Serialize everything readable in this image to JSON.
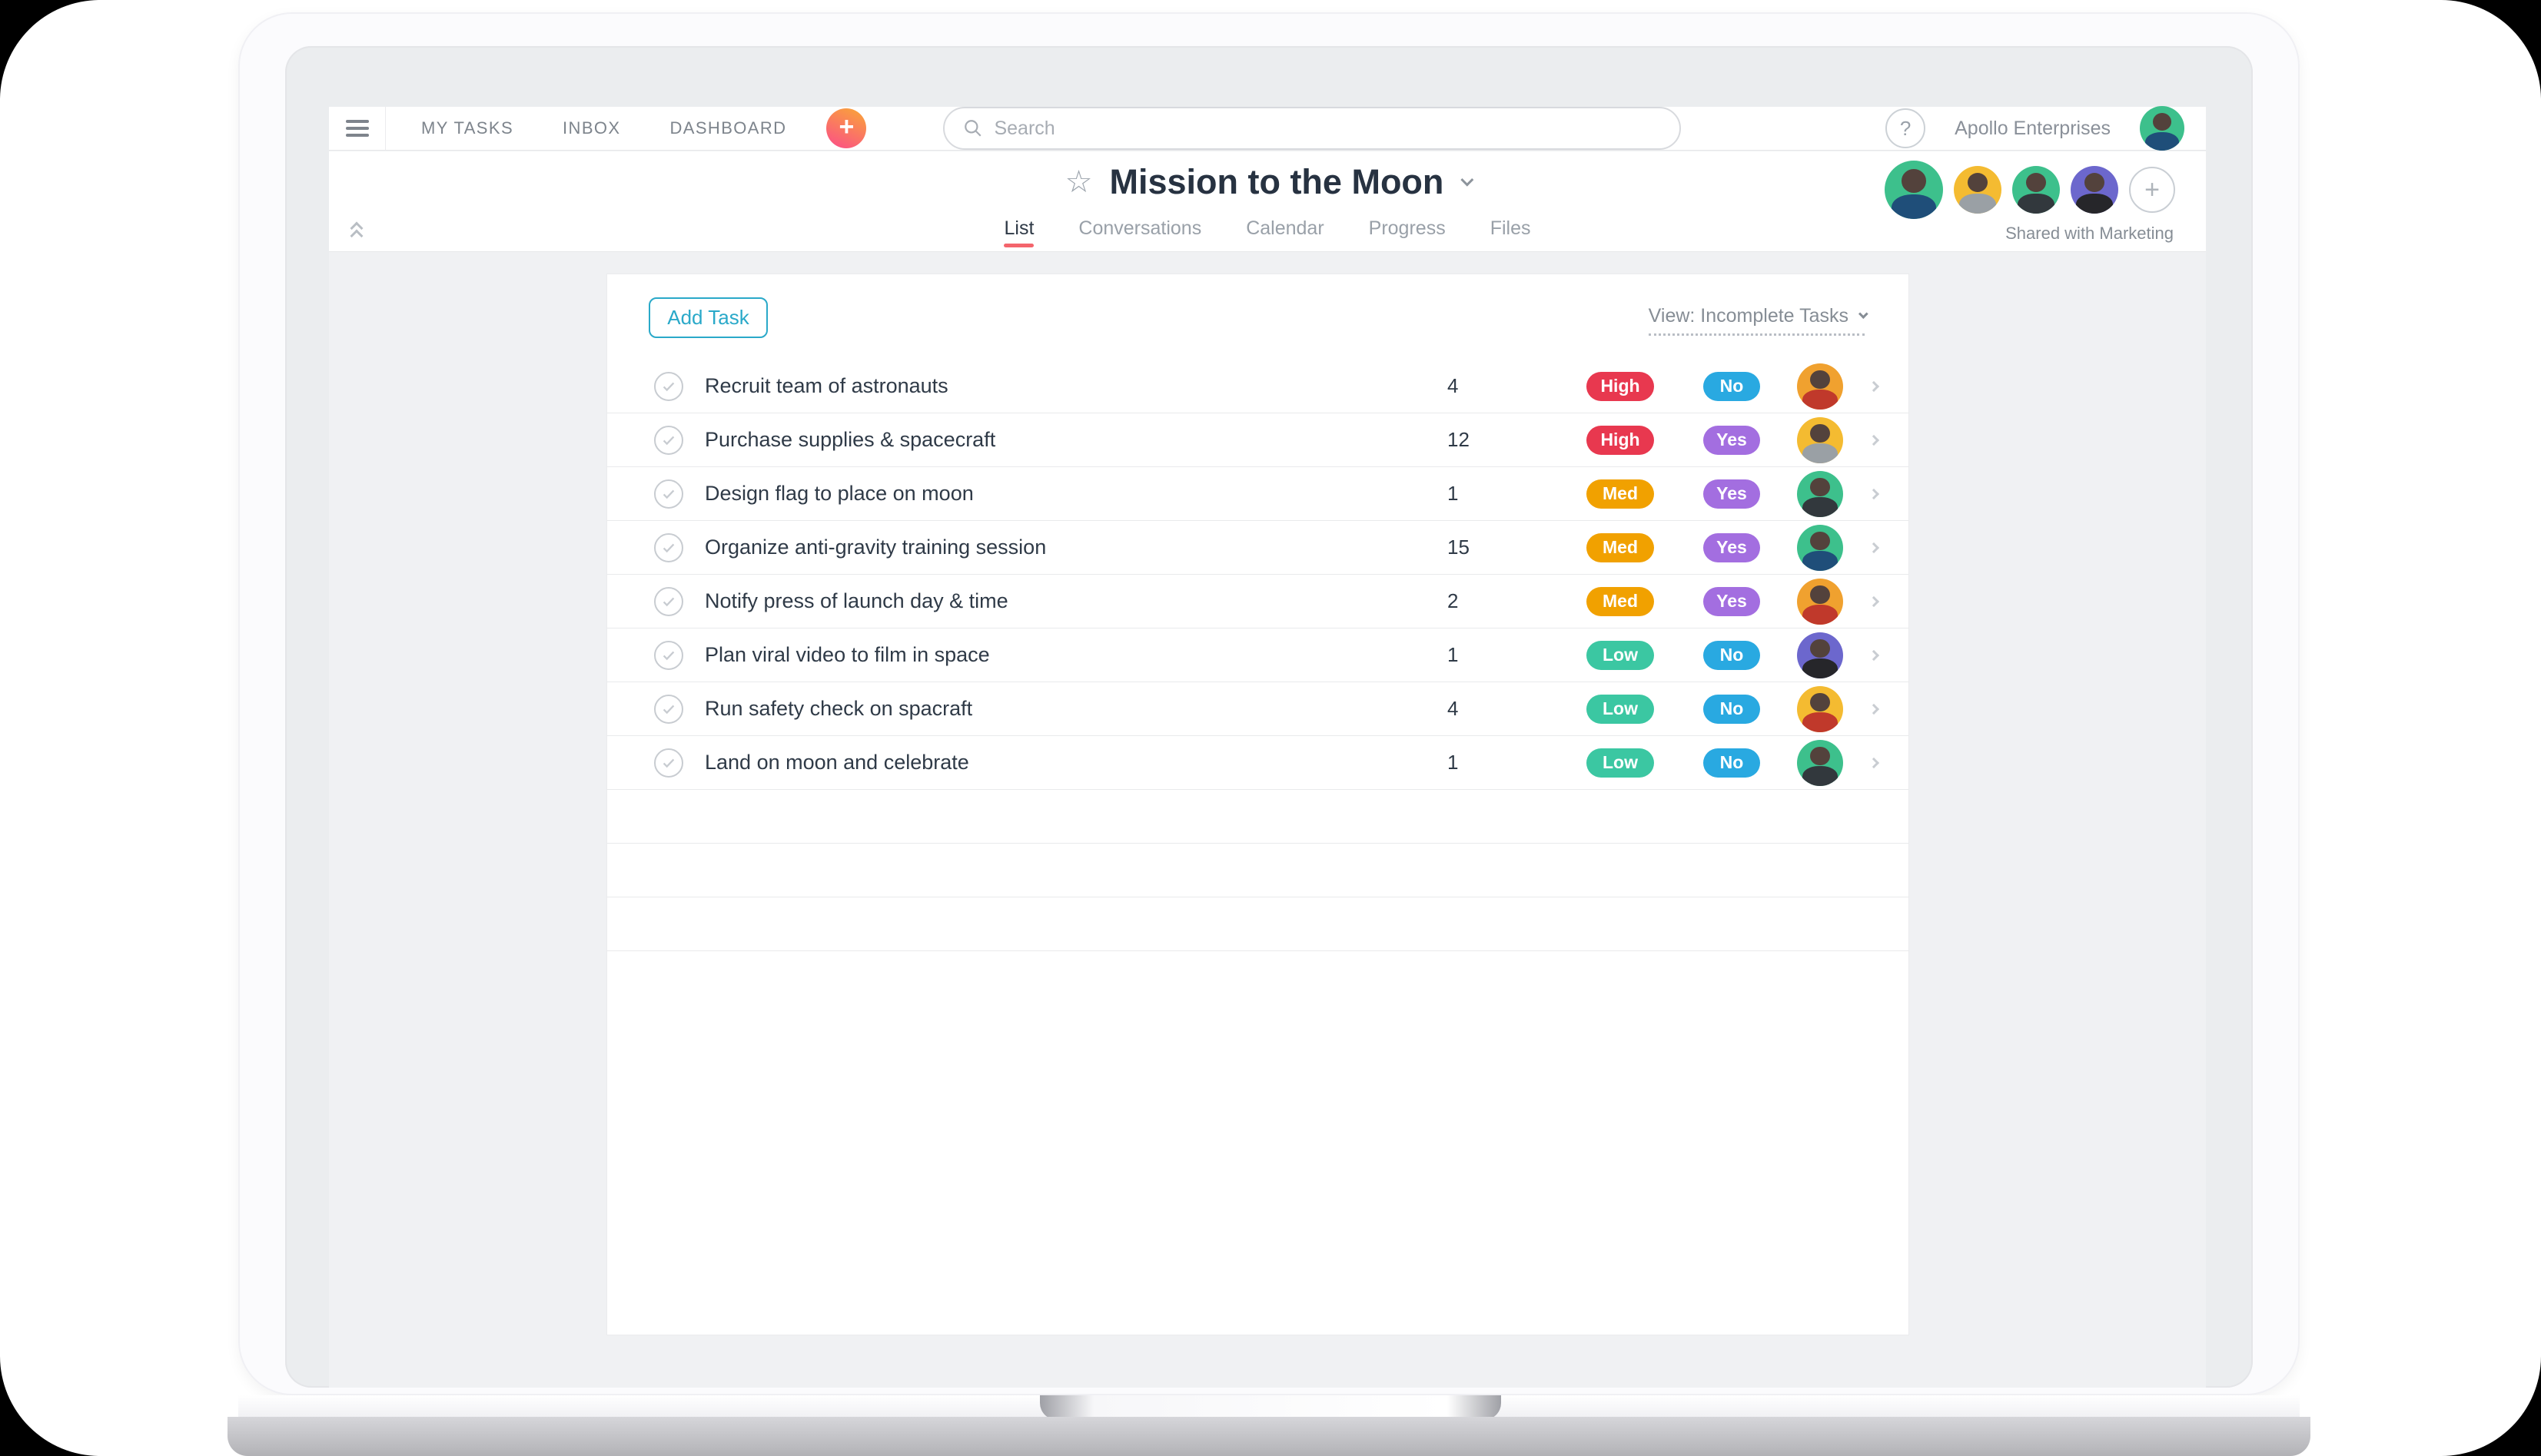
{
  "nav": {
    "items": [
      "MY TASKS",
      "INBOX",
      "DASHBOARD"
    ],
    "search_placeholder": "Search",
    "org_name": "Apollo Enterprises",
    "help_label": "?",
    "plus_label": "+"
  },
  "project": {
    "title": "Mission to the Moon",
    "star_icon": "☆",
    "shared_note": "Shared with Marketing",
    "add_member_label": "+"
  },
  "tabs": [
    {
      "label": "List",
      "active": true
    },
    {
      "label": "Conversations",
      "active": false
    },
    {
      "label": "Calendar",
      "active": false
    },
    {
      "label": "Progress",
      "active": false
    },
    {
      "label": "Files",
      "active": false
    }
  ],
  "toolbar": {
    "add_task_label": "Add Task",
    "view_label": "View: Incomplete Tasks"
  },
  "colors": {
    "accent_red": "#f4656c",
    "add_task": "#2aa9c9",
    "plus_gradient": [
      "#f9a13c",
      "#fb5780"
    ],
    "priority": {
      "High": "#e8384f",
      "Med": "#f1a100",
      "Low": "#3bc7a2"
    },
    "answer": {
      "Yes": "#a36ee0",
      "No": "#29a9e1"
    }
  },
  "user_avatar": {
    "bg": "#3dc08c",
    "clothing": "#1f4e79"
  },
  "header_avatars": [
    {
      "bg": "#3dc08c",
      "clothing": "#1f4e79"
    },
    {
      "bg": "#f4bb31",
      "clothing": "#9aa0a5"
    },
    {
      "bg": "#3dc08c",
      "clothing": "#32383d"
    },
    {
      "bg": "#6c67cd",
      "clothing": "#26262a"
    }
  ],
  "tasks": [
    {
      "name": "Recruit team of astronauts",
      "count": "4",
      "priority": "High",
      "answer": "No",
      "avatar": {
        "bg": "#f0a12f",
        "clothing": "#c0392b"
      }
    },
    {
      "name": "Purchase supplies & spacecraft",
      "count": "12",
      "priority": "High",
      "answer": "Yes",
      "avatar": {
        "bg": "#f4bb31",
        "clothing": "#9aa0a5"
      }
    },
    {
      "name": "Design flag to place on moon",
      "count": "1",
      "priority": "Med",
      "answer": "Yes",
      "avatar": {
        "bg": "#3dc08c",
        "clothing": "#32383d"
      }
    },
    {
      "name": "Organize anti-gravity training session",
      "count": "15",
      "priority": "Med",
      "answer": "Yes",
      "avatar": {
        "bg": "#3dc08c",
        "clothing": "#1f4e79"
      }
    },
    {
      "name": "Notify press of launch day & time",
      "count": "2",
      "priority": "Med",
      "answer": "Yes",
      "avatar": {
        "bg": "#f0a12f",
        "clothing": "#c0392b"
      }
    },
    {
      "name": "Plan viral video to film in space",
      "count": "1",
      "priority": "Low",
      "answer": "No",
      "avatar": {
        "bg": "#6c67cd",
        "clothing": "#26262a"
      }
    },
    {
      "name": "Run safety check on spacraft",
      "count": "4",
      "priority": "Low",
      "answer": "No",
      "avatar": {
        "bg": "#f4bb31",
        "clothing": "#c0392b"
      }
    },
    {
      "name": "Land on moon and celebrate",
      "count": "1",
      "priority": "Low",
      "answer": "No",
      "avatar": {
        "bg": "#3dc08c",
        "clothing": "#32383d"
      }
    }
  ]
}
